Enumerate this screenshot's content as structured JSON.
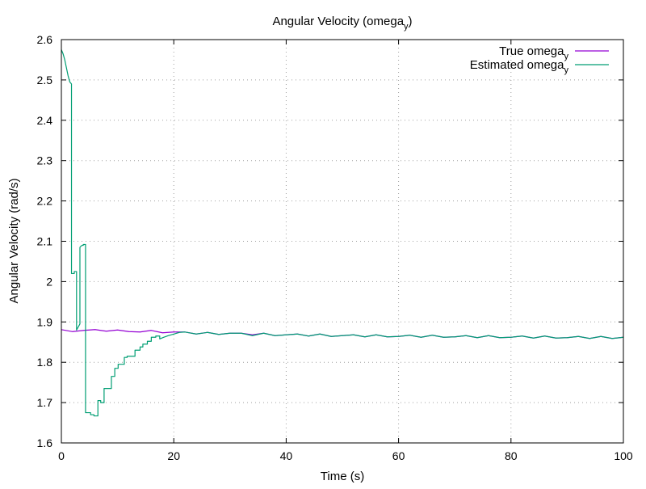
{
  "chart_data": {
    "type": "line",
    "title": "Angular Velocity (omega",
    "title_sub": "y",
    "title_end": ")",
    "xlabel": "Time (s)",
    "ylabel": "Angular Velocity (rad/s)",
    "xlim": [
      0,
      100
    ],
    "ylim": [
      1.6,
      2.6
    ],
    "xticks": [
      0,
      20,
      40,
      60,
      80,
      100
    ],
    "xtick_labels": [
      "0",
      "20",
      "40",
      "60",
      "80",
      "100"
    ],
    "yticks": [
      1.6,
      1.7,
      1.8,
      1.9,
      2.0,
      2.1,
      2.2,
      2.3,
      2.4,
      2.5,
      2.6
    ],
    "ytick_labels": [
      "1.6",
      "1.7",
      "1.8",
      "1.9",
      "2",
      "2.1",
      "2.2",
      "2.3",
      "2.4",
      "2.5",
      "2.6"
    ],
    "grid": true,
    "legend_position": "top-right",
    "series": [
      {
        "name": "True omega",
        "name_sub": "y",
        "color": "#9400d3",
        "x": [
          0,
          2,
          4,
          6,
          8,
          10,
          12,
          14,
          16,
          18,
          20,
          22,
          24,
          26,
          28,
          30,
          32,
          34,
          36,
          38,
          40,
          42,
          44,
          46,
          48,
          50,
          52,
          54,
          56,
          58,
          60,
          62,
          64,
          66,
          68,
          70,
          72,
          74,
          76,
          78,
          80,
          82,
          84,
          86,
          88,
          90,
          92,
          94,
          96,
          98,
          100
        ],
        "y": [
          1.881,
          1.876,
          1.879,
          1.881,
          1.877,
          1.88,
          1.876,
          1.875,
          1.879,
          1.873,
          1.875,
          1.875,
          1.87,
          1.874,
          1.869,
          1.872,
          1.872,
          1.868,
          1.872,
          1.866,
          1.868,
          1.87,
          1.865,
          1.87,
          1.864,
          1.866,
          1.868,
          1.863,
          1.868,
          1.863,
          1.864,
          1.867,
          1.862,
          1.867,
          1.862,
          1.863,
          1.866,
          1.861,
          1.866,
          1.861,
          1.862,
          1.865,
          1.86,
          1.865,
          1.86,
          1.861,
          1.864,
          1.859,
          1.864,
          1.859,
          1.862
        ]
      },
      {
        "name": "Estimated omega",
        "name_sub": "y",
        "color": "#009e73",
        "x": [
          0.0,
          0.3,
          0.6,
          0.9,
          1.2,
          1.5,
          1.8,
          1.8,
          2.3,
          2.3,
          2.7,
          2.7,
          3.3,
          3.3,
          3.5,
          3.7,
          3.9,
          3.9,
          4.3,
          4.3,
          5.2,
          5.2,
          5.8,
          5.8,
          6.5,
          6.5,
          7.0,
          7.0,
          7.6,
          7.6,
          8.4,
          8.4,
          8.9,
          8.9,
          9.5,
          9.5,
          10.1,
          10.1,
          11.2,
          11.2,
          11.7,
          11.7,
          12.6,
          12.6,
          13.1,
          13.1,
          14.0,
          14.0,
          14.5,
          14.5,
          15.3,
          15.3,
          16.0,
          16.0,
          16.8,
          16.8,
          17.5,
          17.5,
          18.2,
          19.0,
          20.0,
          21.0,
          22.0,
          24.0,
          26.0,
          28.0,
          30.0,
          32.0,
          34.0,
          36.0,
          38.0,
          40.0,
          42.0,
          44.0,
          46.0,
          48.0,
          50.0,
          52.0,
          54.0,
          56.0,
          58.0,
          60.0,
          62.0,
          64.0,
          66.0,
          68.0,
          70.0,
          72.0,
          74.0,
          76.0,
          78.0,
          80.0,
          82.0,
          84.0,
          86.0,
          88.0,
          90.0,
          92.0,
          94.0,
          96.0,
          98.0,
          100.0
        ],
        "y": [
          2.575,
          2.565,
          2.55,
          2.53,
          2.51,
          2.495,
          2.49,
          2.02,
          2.02,
          2.025,
          2.025,
          1.88,
          1.895,
          2.085,
          2.088,
          2.09,
          2.09,
          2.092,
          2.092,
          1.675,
          1.675,
          1.67,
          1.67,
          1.667,
          1.667,
          1.705,
          1.705,
          1.7,
          1.7,
          1.735,
          1.735,
          1.735,
          1.735,
          1.765,
          1.765,
          1.785,
          1.785,
          1.795,
          1.795,
          1.812,
          1.812,
          1.815,
          1.815,
          1.815,
          1.815,
          1.83,
          1.83,
          1.838,
          1.838,
          1.845,
          1.845,
          1.852,
          1.852,
          1.862,
          1.862,
          1.865,
          1.865,
          1.858,
          1.862,
          1.866,
          1.87,
          1.874,
          1.875,
          1.87,
          1.874,
          1.869,
          1.872,
          1.872,
          1.866,
          1.872,
          1.866,
          1.868,
          1.87,
          1.865,
          1.87,
          1.864,
          1.866,
          1.868,
          1.863,
          1.868,
          1.863,
          1.864,
          1.867,
          1.862,
          1.867,
          1.862,
          1.863,
          1.866,
          1.861,
          1.866,
          1.861,
          1.862,
          1.865,
          1.86,
          1.865,
          1.86,
          1.861,
          1.864,
          1.859,
          1.864,
          1.859,
          1.862
        ]
      }
    ]
  }
}
